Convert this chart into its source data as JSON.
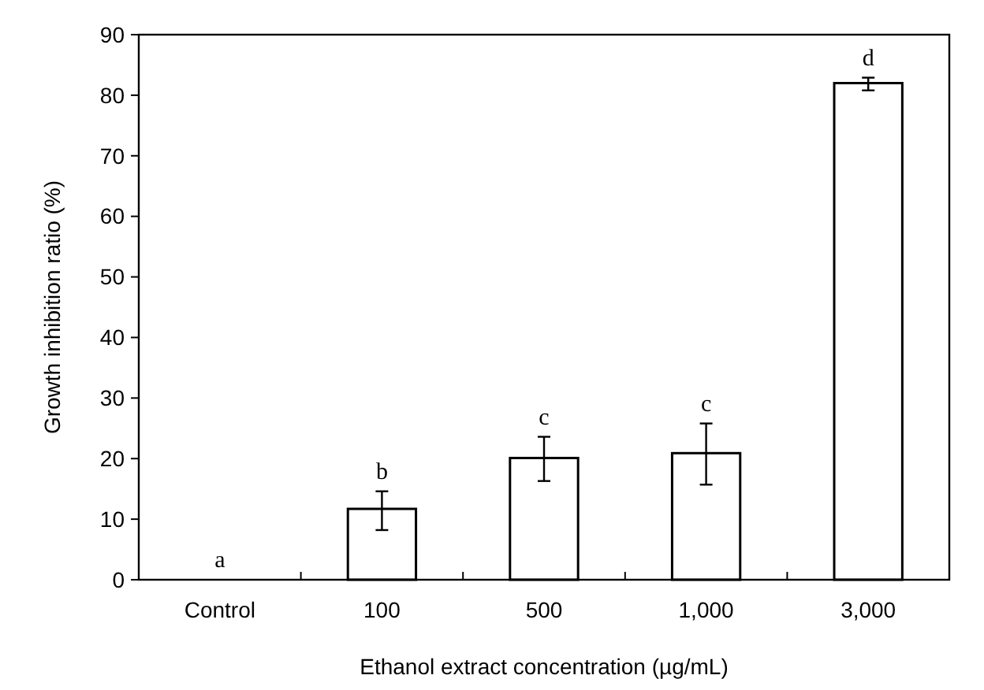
{
  "chart_data": {
    "type": "bar",
    "xlabel": "Ethanol extract concentration (µg/mL)",
    "ylabel": "Growth inhibition ratio (%)",
    "categories": [
      "Control",
      "100",
      "500",
      "1,000",
      "3,000"
    ],
    "values": [
      0,
      11.7,
      20.1,
      20.9,
      82.0
    ],
    "errors": [
      null,
      [
        8.2,
        14.6
      ],
      [
        16.3,
        23.6
      ],
      [
        15.7,
        25.8
      ],
      [
        80.8,
        82.9
      ]
    ],
    "color": "#ffffff",
    "ylim": [
      0,
      90
    ],
    "yticks": [
      0,
      10,
      20,
      30,
      40,
      50,
      60,
      70,
      80,
      90
    ],
    "grid": false,
    "annotations": [
      {
        "text": "a",
        "x": "Control",
        "y": 0
      },
      {
        "text": "b",
        "x": "100",
        "y": 14.6
      },
      {
        "text": "c",
        "x": "500",
        "y": 23.6
      },
      {
        "text": "c",
        "x": "1,000",
        "y": 25.8
      },
      {
        "text": "d",
        "x": "3,000",
        "y": 82.9
      }
    ]
  }
}
